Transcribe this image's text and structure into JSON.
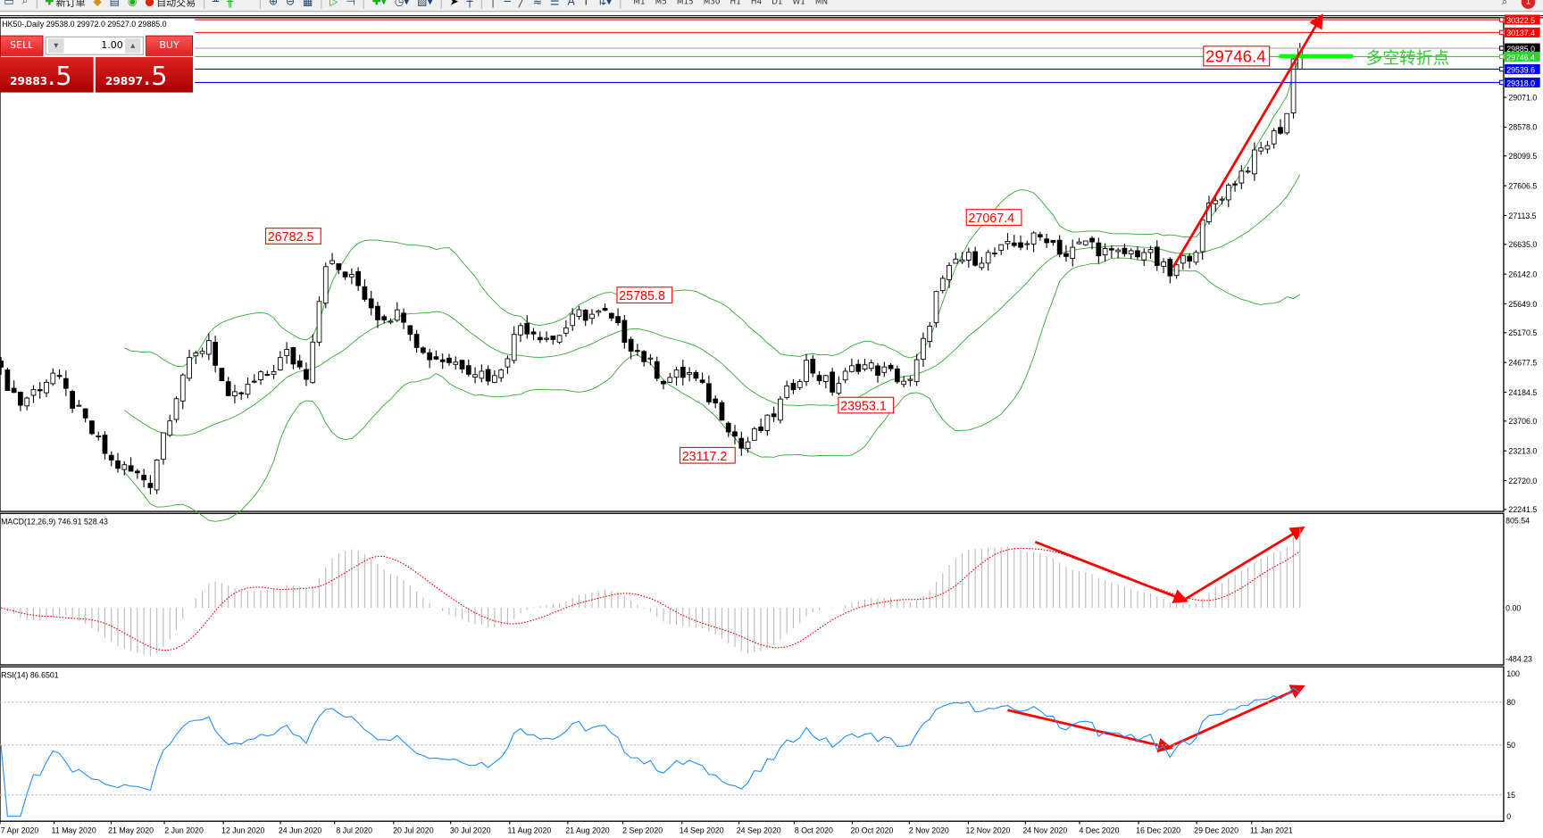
{
  "toolbar": {
    "new_order": "新订单",
    "auto_trading": "自动交易",
    "timeframes": [
      "M1",
      "M5",
      "M15",
      "M30",
      "H1",
      "H4",
      "D1",
      "W1",
      "MN"
    ],
    "notifications": "1"
  },
  "chart": {
    "title": "HK50-,Daily  29538.0 29972.0 29527.0 29885.0"
  },
  "trade_panel": {
    "sell_label": "SELL",
    "buy_label": "BUY",
    "volume": "1.00",
    "sell_price_main": "29883",
    "sell_price_big": ".5",
    "buy_price_main": "29897",
    "buy_price_big": ".5"
  },
  "price_axis": [
    "29071.0",
    "28578.0",
    "28099.5",
    "27606.5",
    "27113.5",
    "26635.0",
    "26142.0",
    "25649.0",
    "25170.5",
    "24677.5",
    "24184.5",
    "23706.0",
    "23213.0",
    "22720.0",
    "22241.5"
  ],
  "levels": [
    {
      "price": 30322.5,
      "label": "30322.5",
      "color": "#ff0000"
    },
    {
      "price": 30137.4,
      "label": "30137.4",
      "color": "#ff0000"
    },
    {
      "price": 29885.0,
      "label": "29885.0",
      "color": "#000000"
    },
    {
      "price": 29746.4,
      "label": "29746.4",
      "color": "#33cc33"
    },
    {
      "price": 29539.6,
      "label": "29539.6",
      "color": "#0000ff"
    },
    {
      "price": 29318.0,
      "label": "29318.0",
      "color": "#0000ff"
    }
  ],
  "annotations": {
    "labels": [
      "26782.5",
      "25785.8",
      "27067.4",
      "23953.1",
      "23117.2"
    ],
    "pivot_value": "29746.4",
    "pivot_text": "多空转折点"
  },
  "macd": {
    "label": "MACD(12,26,9) 746.91 528.43",
    "axis": [
      "805.54",
      "0.00",
      "-484.23"
    ]
  },
  "rsi": {
    "label": "RSI(14) 86.6501",
    "axis": [
      "100",
      "80",
      "50",
      "15",
      "0"
    ]
  },
  "dates": [
    "7 Apr 2020",
    "11 May 2020",
    "21 May 2020",
    "2 Jun 2020",
    "12 Jun 2020",
    "24 Jun 2020",
    "8 Jul 2020",
    "20 Jul 2020",
    "30 Jul 2020",
    "11 Aug 2020",
    "21 Aug 2020",
    "2 Sep 2020",
    "14 Sep 2020",
    "24 Sep 2020",
    "8 Oct 2020",
    "20 Oct 2020",
    "2 Nov 2020",
    "12 Nov 2020",
    "24 Nov 2020",
    "4 Dec 2020",
    "16 Dec 2020",
    "29 Dec 2020",
    "11 Jan 2021"
  ],
  "chart_data": {
    "type": "candlestick",
    "symbol": "HK50",
    "timeframe": "Daily",
    "bollinger": [
      20,
      2
    ],
    "approx_closes_by_bar": [
      [
        0,
        24491
      ],
      [
        3,
        24002
      ],
      [
        8,
        24491
      ],
      [
        12,
        23839
      ],
      [
        17,
        23024
      ],
      [
        23,
        22698
      ],
      [
        25,
        23513
      ],
      [
        28,
        24491
      ],
      [
        32,
        25061
      ],
      [
        35,
        24002
      ],
      [
        41,
        24491
      ],
      [
        44,
        24817
      ],
      [
        47,
        24491
      ],
      [
        50,
        26365
      ],
      [
        55,
        25958
      ],
      [
        58,
        25469
      ],
      [
        62,
        25469
      ],
      [
        65,
        24817
      ],
      [
        71,
        24654
      ],
      [
        76,
        24410
      ],
      [
        80,
        25306
      ],
      [
        85,
        25061
      ],
      [
        89,
        25469
      ],
      [
        93,
        25469
      ],
      [
        97,
        24980
      ],
      [
        102,
        24410
      ],
      [
        106,
        24491
      ],
      [
        111,
        23839
      ],
      [
        114,
        23268
      ],
      [
        118,
        23676
      ],
      [
        121,
        24165
      ],
      [
        124,
        24654
      ],
      [
        128,
        24246
      ],
      [
        132,
        24654
      ],
      [
        137,
        24491
      ],
      [
        140,
        24328
      ],
      [
        142,
        24980
      ],
      [
        144,
        25795
      ],
      [
        147,
        26365
      ],
      [
        152,
        26447
      ],
      [
        158,
        26691
      ],
      [
        161,
        26773
      ],
      [
        164,
        26447
      ],
      [
        167,
        26691
      ],
      [
        171,
        26447
      ],
      [
        176,
        26528
      ],
      [
        180,
        26121
      ],
      [
        184,
        26610
      ],
      [
        186,
        27262
      ],
      [
        189,
        27588
      ],
      [
        193,
        28077
      ],
      [
        197,
        28566
      ],
      [
        198,
        28811
      ],
      [
        199,
        29707
      ],
      [
        200,
        29885
      ]
    ]
  }
}
